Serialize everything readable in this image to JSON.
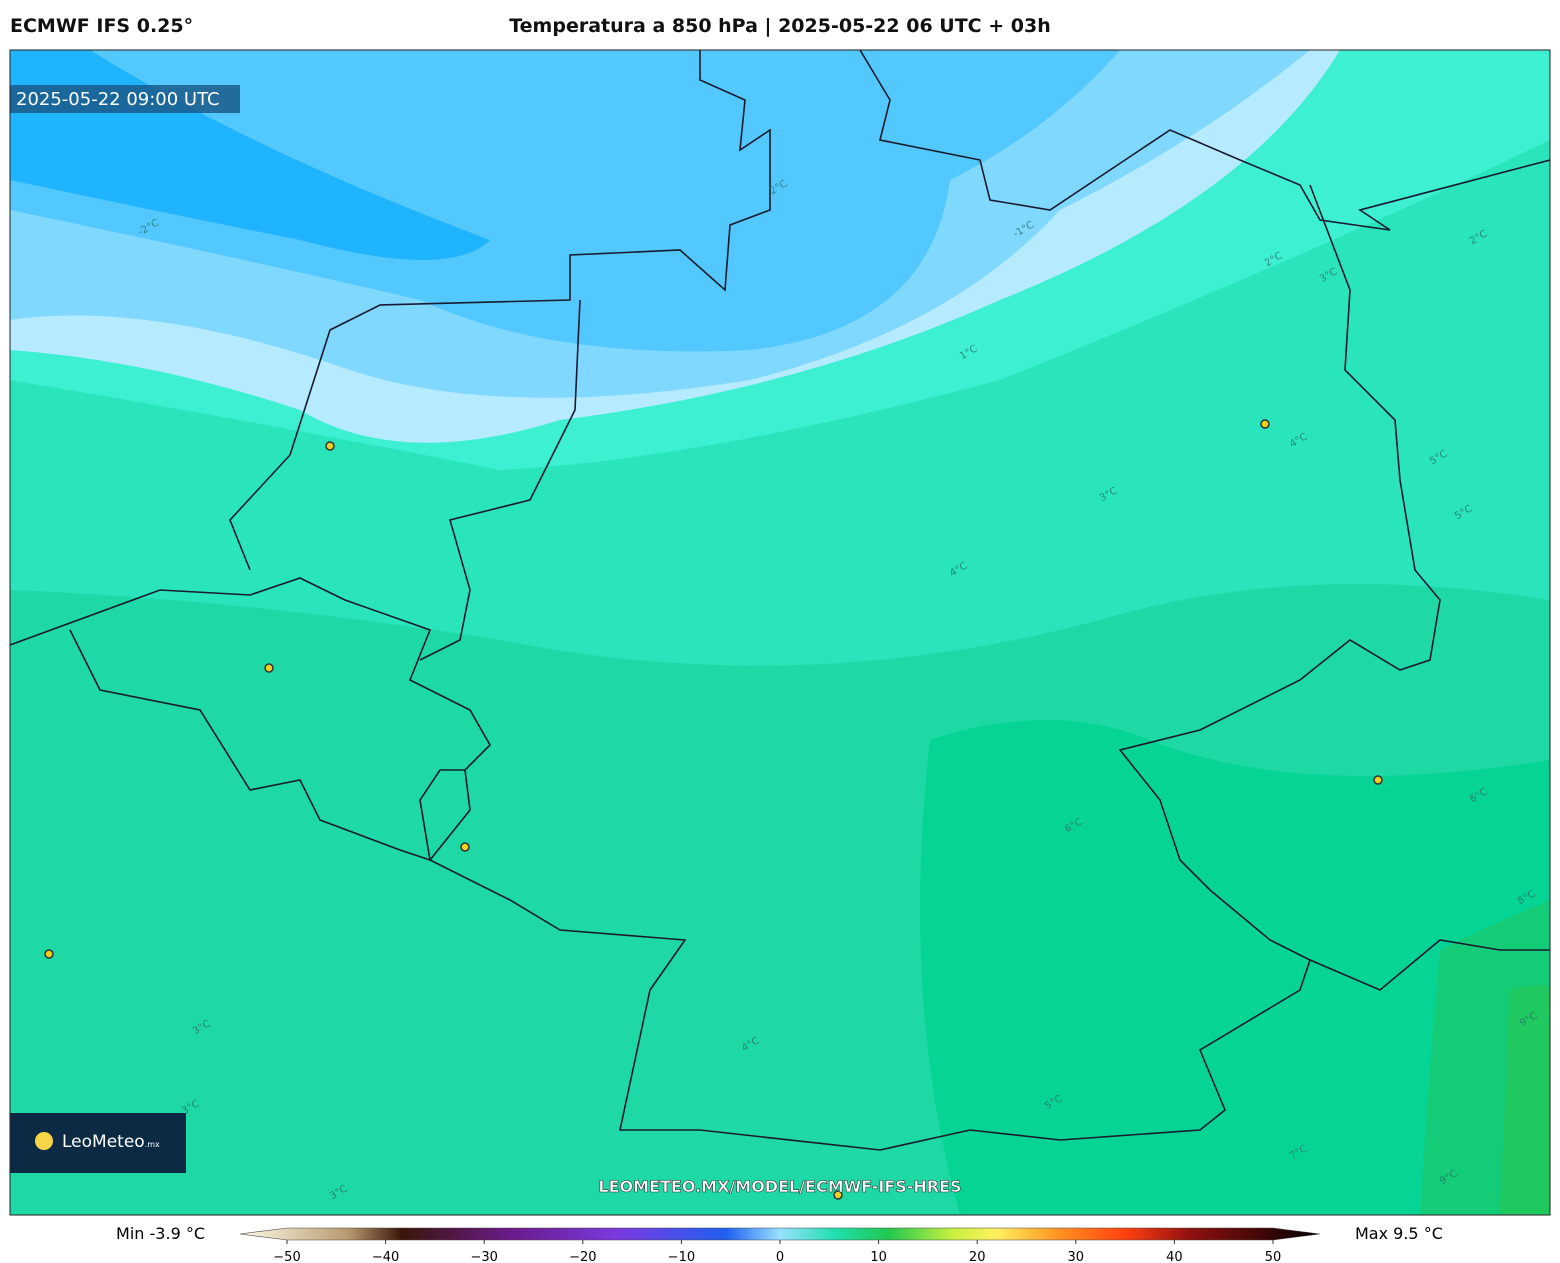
{
  "header": {
    "model": "ECMWF IFS 0.25°",
    "title": "Temperatura a 850 hPa | 2025-05-22 06 UTC + 03h"
  },
  "map": {
    "valid_time": "2025-05-22 09:00 UTC",
    "watermark": "LEOMETEO.MX/MODEL/ECMWF-IFS-HRES",
    "logo": {
      "name": "LeoMeteo",
      "suffix": ".mx"
    },
    "contour_labels": [
      "-2°C",
      "2°C",
      "-1°C",
      "1°C",
      "2°C",
      "3°C",
      "4°C",
      "3°C",
      "4°C",
      "5°C",
      "5°C",
      "6°C",
      "6°C",
      "8°C",
      "9°C",
      "4°C",
      "3°C",
      "3°C",
      "3°C",
      "5°C",
      "7°C",
      "9°C",
      "2°C"
    ]
  },
  "colorbar": {
    "min_label": "Min -3.9 °C",
    "max_label": "Max 9.5 °C",
    "ticks": [
      {
        "value": -50,
        "label": "−50"
      },
      {
        "value": -40,
        "label": "−40"
      },
      {
        "value": -30,
        "label": "−30"
      },
      {
        "value": -20,
        "label": "−20"
      },
      {
        "value": -10,
        "label": "−10"
      },
      0,
      10,
      20,
      30,
      40,
      50
    ]
  }
}
